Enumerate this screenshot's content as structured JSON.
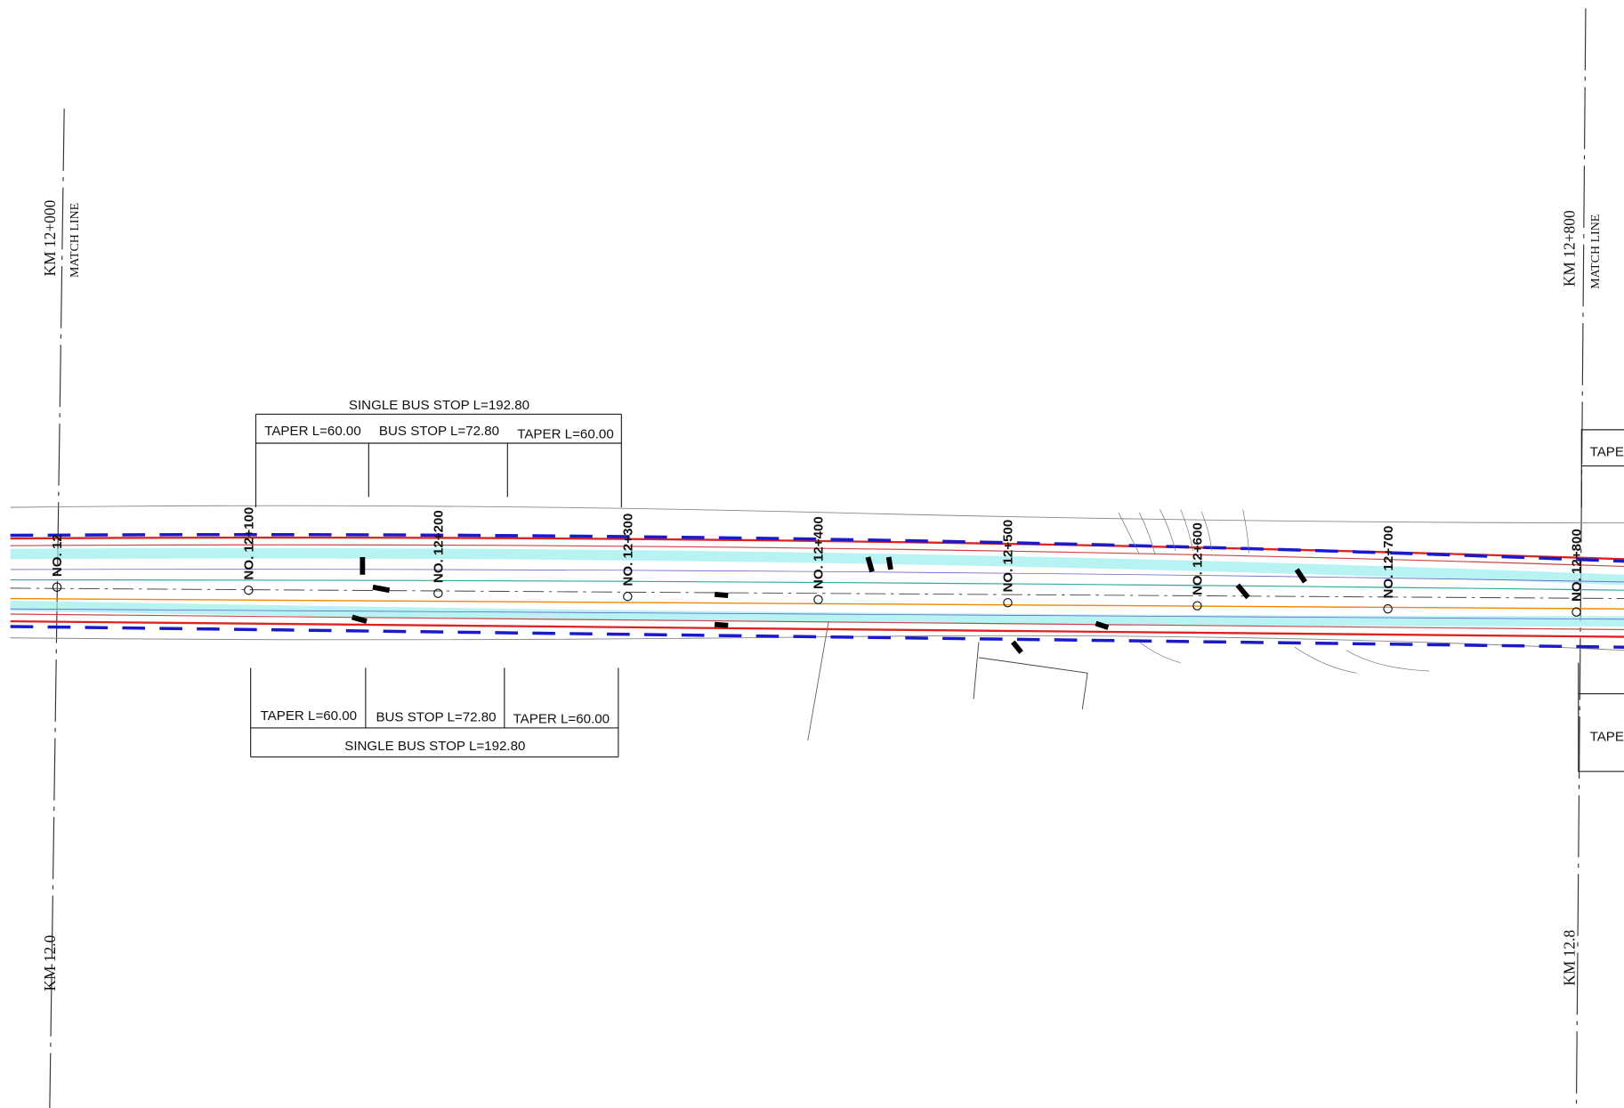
{
  "match_lines": [
    {
      "station": "KM 12+000",
      "label": "MATCH LINE",
      "km": "KM 12.0"
    },
    {
      "station": "KM 12+800",
      "label": "MATCH LINE",
      "km": "KM 12.8"
    }
  ],
  "stations": [
    "NO. 12",
    "NO. 12+100",
    "NO. 12+200",
    "NO. 12+300",
    "NO. 12+400",
    "NO. 12+500",
    "NO. 12+600",
    "NO. 12+700",
    "NO. 12+800"
  ],
  "bus_stop_top": {
    "total": "SINGLE BUS STOP L=192.80",
    "segments": [
      "TAPER L=60.00",
      "BUS STOP L=72.80",
      "TAPER L=60.00"
    ]
  },
  "bus_stop_bottom": {
    "total": "SINGLE BUS STOP L=192.80",
    "segments": [
      "TAPER L=60.00",
      "BUS STOP L=72.80",
      "TAPER L=60.00"
    ]
  },
  "right_labels": [
    "TAPE",
    "TAPE"
  ]
}
